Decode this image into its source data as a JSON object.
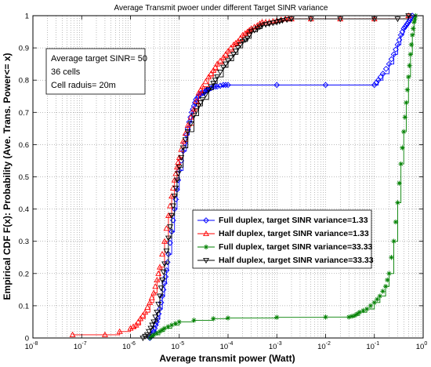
{
  "chart_data": {
    "type": "line",
    "title": "Average Transmit pwoer under different Target SINR variance",
    "xlabel": "Average transmit power (Watt)",
    "ylabel": "Empirical CDF F(x): Probability (Ave. Trans. Power<= x)",
    "x_scale": "log",
    "xlim": [
      1e-08,
      1
    ],
    "ylim": [
      0,
      1
    ],
    "grid": true,
    "legend_position": "lower-right",
    "x_tick_exponents": [
      -8,
      -7,
      -6,
      -5,
      -4,
      -3,
      -2,
      -1,
      0
    ],
    "x_tick_base": "10",
    "y_ticks": [
      "0",
      "0.1",
      "0.2",
      "0.3",
      "0.4",
      "0.5",
      "0.6",
      "0.7",
      "0.8",
      "0.9",
      "1"
    ],
    "y_tick_values": [
      0,
      0.1,
      0.2,
      0.3,
      0.4,
      0.5,
      0.6,
      0.7,
      0.8,
      0.9,
      1
    ],
    "annotation": [
      "Average target SINR= 50",
      "36 cells",
      "Cell raduis= 20m"
    ],
    "series": [
      {
        "name": "Full duplex, target SINR variance=1.33",
        "color": "#0000ff",
        "marker": "diamond",
        "x": [
          2.5e-06,
          2.8e-06,
          3e-06,
          3.3e-06,
          3.6e-06,
          4e-06,
          4.5e-06,
          5e-06,
          5.5e-06,
          6e-06,
          7e-06,
          8e-06,
          9e-06,
          1e-05,
          1.2e-05,
          1.4e-05,
          1.6e-05,
          1.8e-05,
          2e-05,
          2.2e-05,
          2.5e-05,
          2.8e-05,
          3.2e-05,
          3.6e-05,
          4e-05,
          5e-05,
          6e-05,
          8e-05,
          0.0001,
          0.001,
          0.01,
          0.1,
          0.12,
          0.15,
          0.2,
          0.25,
          0.3,
          0.35,
          0.4,
          0.45,
          0.5,
          0.55,
          0.6
        ],
        "y": [
          0.0,
          0.01,
          0.02,
          0.04,
          0.06,
          0.09,
          0.13,
          0.17,
          0.21,
          0.26,
          0.33,
          0.4,
          0.46,
          0.52,
          0.58,
          0.63,
          0.67,
          0.7,
          0.72,
          0.74,
          0.75,
          0.76,
          0.76,
          0.77,
          0.77,
          0.78,
          0.78,
          0.785,
          0.785,
          0.785,
          0.785,
          0.785,
          0.8,
          0.82,
          0.85,
          0.88,
          0.91,
          0.94,
          0.96,
          0.97,
          0.98,
          0.99,
          1.0
        ]
      },
      {
        "name": "Half duplex, target SINR variance=1.33",
        "color": "#ff0000",
        "marker": "triangle-up",
        "x": [
          6.5e-08,
          3e-07,
          6e-07,
          1e-06,
          1.3e-06,
          1.6e-06,
          2e-06,
          2.5e-06,
          3e-06,
          3.5e-06,
          4e-06,
          5e-06,
          6e-06,
          7e-06,
          8e-06,
          9e-06,
          1e-05,
          1.2e-05,
          1.5e-05,
          2e-05,
          2.5e-05,
          3e-05,
          4e-05,
          5e-05,
          6e-05,
          8e-05,
          0.0001,
          0.00013,
          0.00016,
          0.0002,
          0.00025,
          0.0003,
          0.0004,
          0.0005,
          0.0007,
          0.001,
          0.0015,
          0.002,
          0.005,
          0.02,
          0.1,
          0.5
        ],
        "y": [
          0.01,
          0.01,
          0.02,
          0.03,
          0.04,
          0.06,
          0.08,
          0.11,
          0.14,
          0.18,
          0.22,
          0.3,
          0.38,
          0.44,
          0.49,
          0.53,
          0.56,
          0.61,
          0.66,
          0.71,
          0.76,
          0.78,
          0.81,
          0.83,
          0.85,
          0.87,
          0.89,
          0.91,
          0.92,
          0.94,
          0.95,
          0.96,
          0.97,
          0.98,
          0.98,
          0.985,
          0.99,
          0.99,
          0.99,
          0.99,
          0.99,
          1.0
        ]
      },
      {
        "name": "Full duplex, target SINR variance=33.33",
        "color": "#008000",
        "marker": "asterisk",
        "x": [
          2.5e-06,
          3e-06,
          4e-06,
          5e-06,
          7e-06,
          1e-05,
          2e-05,
          5e-05,
          0.0001,
          0.001,
          0.01,
          0.03,
          0.04,
          0.05,
          0.07,
          0.1,
          0.13,
          0.17,
          0.2,
          0.25,
          0.3,
          0.35,
          0.4,
          0.45,
          0.5,
          0.55,
          0.6,
          0.65,
          0.7
        ],
        "y": [
          0.0,
          0.01,
          0.02,
          0.03,
          0.04,
          0.05,
          0.055,
          0.06,
          0.062,
          0.064,
          0.065,
          0.065,
          0.07,
          0.08,
          0.09,
          0.11,
          0.13,
          0.16,
          0.2,
          0.3,
          0.42,
          0.54,
          0.64,
          0.73,
          0.81,
          0.88,
          0.94,
          0.98,
          1.0
        ]
      },
      {
        "name": "Half duplex, target SINR variance=33.33",
        "color": "#000000",
        "marker": "triangle-down",
        "x": [
          1.8e-06,
          2.2e-06,
          2.6e-06,
          3e-06,
          3.5e-06,
          4e-06,
          4.5e-06,
          5e-06,
          6e-06,
          7e-06,
          8e-06,
          9e-06,
          1e-05,
          1.2e-05,
          1.5e-05,
          2e-05,
          2.5e-05,
          3e-05,
          4e-05,
          5e-05,
          6e-05,
          8e-05,
          0.0001,
          0.00013,
          0.00016,
          0.0002,
          0.00025,
          0.0003,
          0.0004,
          0.0005,
          0.0007,
          0.001,
          0.0013,
          0.002,
          0.005,
          0.02,
          0.1,
          0.3,
          0.5
        ],
        "y": [
          0.0,
          0.01,
          0.03,
          0.05,
          0.08,
          0.13,
          0.18,
          0.23,
          0.31,
          0.38,
          0.44,
          0.49,
          0.53,
          0.59,
          0.64,
          0.69,
          0.72,
          0.74,
          0.77,
          0.79,
          0.81,
          0.84,
          0.86,
          0.88,
          0.9,
          0.92,
          0.93,
          0.95,
          0.96,
          0.97,
          0.975,
          0.98,
          0.985,
          0.99,
          0.99,
          0.99,
          0.99,
          0.99,
          1.0
        ]
      }
    ]
  }
}
